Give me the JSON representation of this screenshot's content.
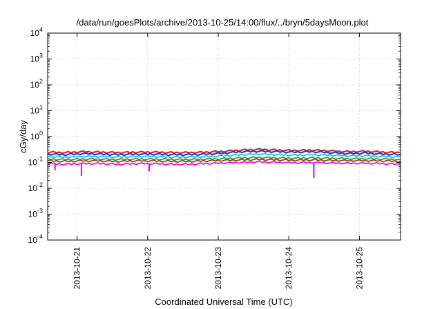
{
  "chart_data": {
    "type": "line",
    "title": "/data/run/goesPlots/archive/2013-10-25/14:00/flux/../bryn/5daysMoon.plot",
    "xlabel": "Coordinated Universal Time (UTC)",
    "ylabel": "cGy/day",
    "yscale": "log",
    "ylim": [
      0.0001,
      10000
    ],
    "xlim": [
      "2013-10-20 14:00",
      "2013-10-25 14:00"
    ],
    "grid": true,
    "y_ticks": [
      {
        "base": "10",
        "exp": "-4"
      },
      {
        "base": "10",
        "exp": "-3"
      },
      {
        "base": "10",
        "exp": "-2"
      },
      {
        "base": "10",
        "exp": "-1"
      },
      {
        "base": "10",
        "exp": "0"
      },
      {
        "base": "10",
        "exp": "1"
      },
      {
        "base": "10",
        "exp": "2"
      },
      {
        "base": "10",
        "exp": "3"
      },
      {
        "base": "10",
        "exp": "4"
      }
    ],
    "x_ticks": [
      "2013-10-21",
      "2013-10-22",
      "2013-10-23",
      "2013-10-24",
      "2013-10-25"
    ],
    "x_tick_times": [
      "2013-10-21 00:00",
      "2013-10-22 00:00",
      "2013-10-23 00:00",
      "2013-10-24 00:00",
      "2013-10-25 00:00"
    ],
    "x": [
      "2013-10-20 14:00",
      "2013-10-20 20:00",
      "2013-10-21 02:00",
      "2013-10-21 08:00",
      "2013-10-21 14:00",
      "2013-10-21 20:00",
      "2013-10-22 02:00",
      "2013-10-22 08:00",
      "2013-10-22 14:00",
      "2013-10-22 20:00",
      "2013-10-23 02:00",
      "2013-10-23 08:00",
      "2013-10-23 14:00",
      "2013-10-23 20:00",
      "2013-10-24 02:00",
      "2013-10-24 08:00",
      "2013-10-24 14:00",
      "2013-10-24 20:00",
      "2013-10-25 02:00",
      "2013-10-25 08:00",
      "2013-10-25 14:00"
    ],
    "series": [
      {
        "color": "#d62728",
        "values": [
          0.25,
          0.24,
          0.26,
          0.25,
          0.24,
          0.25,
          0.25,
          0.24,
          0.24,
          0.25,
          0.27,
          0.3,
          0.32,
          0.3,
          0.29,
          0.3,
          0.28,
          0.26,
          0.27,
          0.25,
          0.24
        ]
      },
      {
        "color": "#1f3fd6",
        "values": [
          0.21,
          0.2,
          0.22,
          0.21,
          0.2,
          0.21,
          0.21,
          0.2,
          0.2,
          0.21,
          0.23,
          0.26,
          0.27,
          0.26,
          0.25,
          0.26,
          0.24,
          0.22,
          0.23,
          0.21,
          0.2
        ]
      },
      {
        "color": "#1fb7e6",
        "values": [
          0.17,
          0.16,
          0.17,
          0.17,
          0.16,
          0.17,
          0.17,
          0.16,
          0.16,
          0.17,
          0.18,
          0.2,
          0.21,
          0.2,
          0.19,
          0.2,
          0.19,
          0.18,
          0.18,
          0.17,
          0.16
        ]
      },
      {
        "color": "#2ca02c",
        "values": [
          0.135,
          0.13,
          0.135,
          0.135,
          0.13,
          0.135,
          0.135,
          0.13,
          0.13,
          0.135,
          0.14,
          0.15,
          0.155,
          0.15,
          0.145,
          0.15,
          0.145,
          0.14,
          0.14,
          0.135,
          0.13
        ]
      },
      {
        "color": "#8b4513",
        "values": [
          0.115,
          0.11,
          0.115,
          0.115,
          0.11,
          0.115,
          0.115,
          0.11,
          0.11,
          0.115,
          0.12,
          0.125,
          0.13,
          0.125,
          0.122,
          0.125,
          0.12,
          0.118,
          0.118,
          0.115,
          0.11
        ]
      },
      {
        "color": "#ff00ff",
        "values": [
          0.09,
          0.085,
          0.09,
          0.09,
          0.085,
          0.09,
          0.09,
          0.085,
          0.085,
          0.09,
          0.095,
          0.1,
          0.105,
          0.1,
          0.097,
          0.1,
          0.095,
          0.093,
          0.093,
          0.09,
          0.085
        ]
      }
    ],
    "spikes": [
      {
        "x": "2013-10-20 16:30",
        "y": 0.05
      },
      {
        "x": "2013-10-21 01:30",
        "y": 0.03
      },
      {
        "x": "2013-10-22 00:30",
        "y": 0.045
      },
      {
        "x": "2013-10-24 08:30",
        "y": 0.025
      }
    ]
  }
}
